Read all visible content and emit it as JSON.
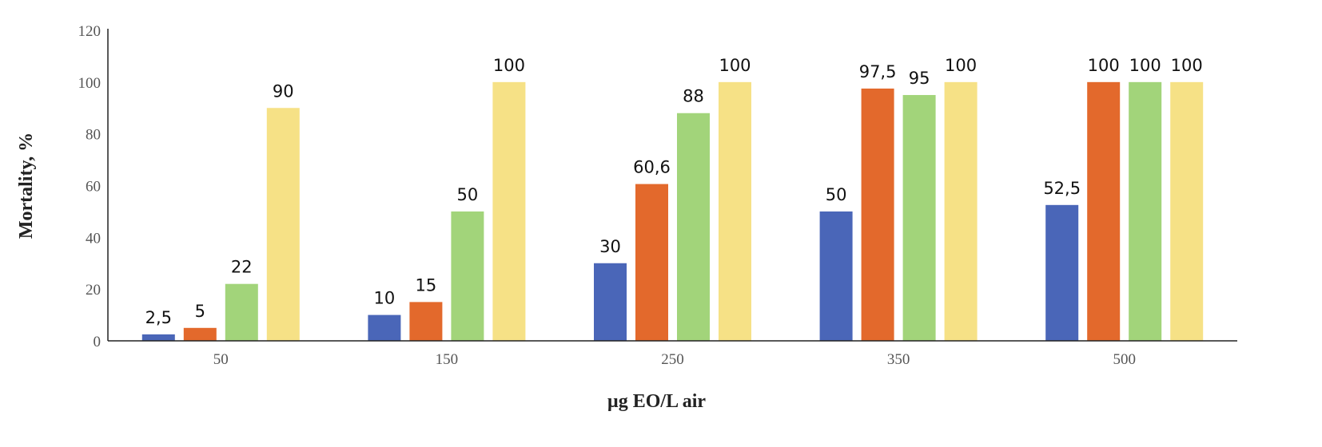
{
  "chart_data": {
    "type": "bar",
    "title": "",
    "xlabel": "µg EO/L air",
    "ylabel": "Mortality, %",
    "ylim": [
      0,
      120
    ],
    "yticks": [
      "0",
      "20",
      "40",
      "60",
      "80",
      "100",
      "120"
    ],
    "categories": [
      "50",
      "150",
      "250",
      "350",
      "500"
    ],
    "grid": false,
    "legend": "none",
    "series": [
      {
        "color": "#4a66b8",
        "values": [
          2.5,
          10,
          30,
          50,
          52.5
        ],
        "labels": [
          "2,5",
          "10",
          "30",
          "50",
          "52,5"
        ]
      },
      {
        "color": "#e3692c",
        "values": [
          5,
          15,
          60.6,
          97.5,
          100
        ],
        "labels": [
          "5",
          "15",
          "60,6",
          "97,5",
          "100"
        ]
      },
      {
        "color": "#a2d47a",
        "values": [
          22,
          50,
          88,
          95,
          100
        ],
        "labels": [
          "22",
          "50",
          "88",
          "95",
          "100"
        ]
      },
      {
        "color": "#f6e186",
        "values": [
          90,
          100,
          100,
          100,
          100
        ],
        "labels": [
          "90",
          "100",
          "100",
          "100",
          "100"
        ]
      }
    ]
  }
}
